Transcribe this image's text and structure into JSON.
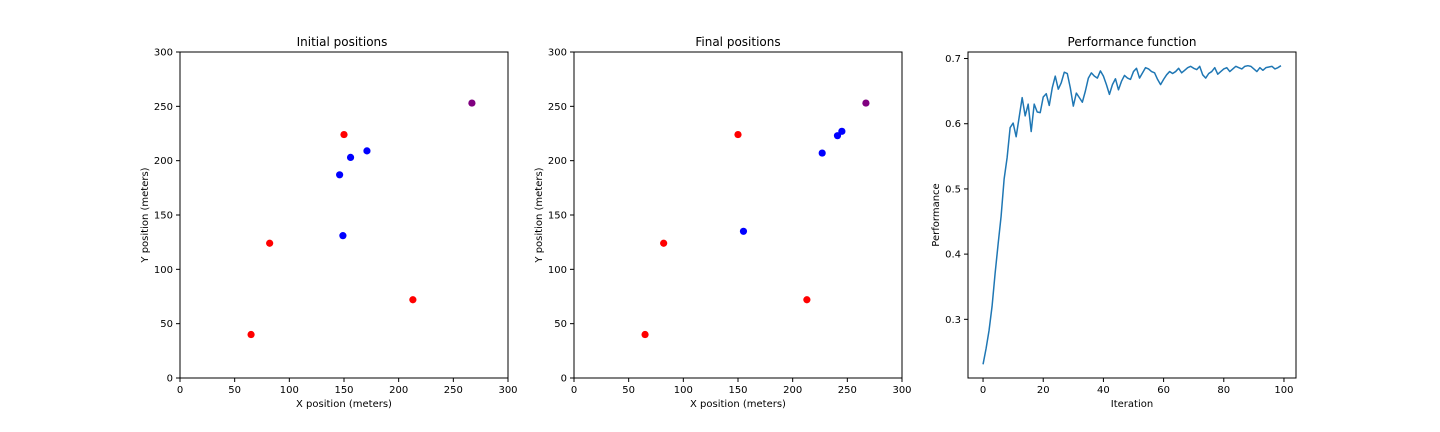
{
  "chart_data": [
    {
      "type": "scatter",
      "title": "Initial positions",
      "xlabel": "X position (meters)",
      "ylabel": "Y position (meters)",
      "xlim": [
        0,
        300
      ],
      "ylim": [
        0,
        300
      ],
      "xticks": [
        0,
        50,
        100,
        150,
        200,
        250,
        300
      ],
      "yticks": [
        0,
        50,
        100,
        150,
        200,
        250,
        300
      ],
      "grid": false,
      "points": [
        {
          "x": 65,
          "y": 40,
          "color": "#ff0000"
        },
        {
          "x": 82,
          "y": 124,
          "color": "#ff0000"
        },
        {
          "x": 150,
          "y": 224,
          "color": "#ff0000"
        },
        {
          "x": 213,
          "y": 72,
          "color": "#ff0000"
        },
        {
          "x": 146,
          "y": 187,
          "color": "#0000ff"
        },
        {
          "x": 156,
          "y": 203,
          "color": "#0000ff"
        },
        {
          "x": 171,
          "y": 209,
          "color": "#0000ff"
        },
        {
          "x": 149,
          "y": 131,
          "color": "#0000ff"
        },
        {
          "x": 267,
          "y": 253,
          "color": "#800080"
        }
      ]
    },
    {
      "type": "scatter",
      "title": "Final positions",
      "xlabel": "X position (meters)",
      "ylabel": "Y position (meters)",
      "xlim": [
        0,
        300
      ],
      "ylim": [
        0,
        300
      ],
      "xticks": [
        0,
        50,
        100,
        150,
        200,
        250,
        300
      ],
      "yticks": [
        0,
        50,
        100,
        150,
        200,
        250,
        300
      ],
      "grid": false,
      "points": [
        {
          "x": 65,
          "y": 40,
          "color": "#ff0000"
        },
        {
          "x": 82,
          "y": 124,
          "color": "#ff0000"
        },
        {
          "x": 150,
          "y": 224,
          "color": "#ff0000"
        },
        {
          "x": 213,
          "y": 72,
          "color": "#ff0000"
        },
        {
          "x": 155,
          "y": 135,
          "color": "#0000ff"
        },
        {
          "x": 227,
          "y": 207,
          "color": "#0000ff"
        },
        {
          "x": 241,
          "y": 223,
          "color": "#0000ff"
        },
        {
          "x": 245,
          "y": 227,
          "color": "#0000ff"
        },
        {
          "x": 267,
          "y": 253,
          "color": "#800080"
        }
      ]
    },
    {
      "type": "line",
      "title": "Performance function",
      "xlabel": "Iteration",
      "ylabel": "Performance",
      "xlim": [
        -5,
        104
      ],
      "ylim": [
        0.21,
        0.71
      ],
      "xticks": [
        0,
        20,
        40,
        60,
        80,
        100
      ],
      "yticks": [
        0.3,
        0.4,
        0.5,
        0.6,
        0.7
      ],
      "grid": false,
      "series": [
        {
          "color": "#1f77b4",
          "x": [
            0,
            1,
            2,
            3,
            4,
            5,
            6,
            7,
            8,
            9,
            10,
            11,
            12,
            13,
            14,
            15,
            16,
            17,
            18,
            19,
            20,
            21,
            22,
            23,
            24,
            25,
            26,
            27,
            28,
            29,
            30,
            31,
            32,
            33,
            34,
            35,
            36,
            37,
            38,
            39,
            40,
            41,
            42,
            43,
            44,
            45,
            46,
            47,
            48,
            49,
            50,
            51,
            52,
            53,
            54,
            55,
            56,
            57,
            58,
            59,
            60,
            61,
            62,
            63,
            64,
            65,
            66,
            67,
            68,
            69,
            70,
            71,
            72,
            73,
            74,
            75,
            76,
            77,
            78,
            79,
            80,
            81,
            82,
            83,
            84,
            85,
            86,
            87,
            88,
            89,
            90,
            91,
            92,
            93,
            94,
            95,
            96,
            97,
            98,
            99
          ],
          "y": [
            0.231,
            0.255,
            0.283,
            0.32,
            0.37,
            0.415,
            0.458,
            0.515,
            0.548,
            0.594,
            0.601,
            0.58,
            0.61,
            0.64,
            0.612,
            0.63,
            0.588,
            0.63,
            0.618,
            0.617,
            0.641,
            0.646,
            0.628,
            0.655,
            0.673,
            0.653,
            0.663,
            0.679,
            0.677,
            0.655,
            0.627,
            0.647,
            0.64,
            0.633,
            0.65,
            0.67,
            0.678,
            0.673,
            0.67,
            0.681,
            0.673,
            0.66,
            0.645,
            0.66,
            0.669,
            0.652,
            0.665,
            0.674,
            0.67,
            0.668,
            0.68,
            0.685,
            0.67,
            0.678,
            0.686,
            0.684,
            0.68,
            0.678,
            0.668,
            0.66,
            0.668,
            0.675,
            0.68,
            0.677,
            0.68,
            0.685,
            0.678,
            0.682,
            0.686,
            0.688,
            0.685,
            0.683,
            0.688,
            0.675,
            0.67,
            0.677,
            0.68,
            0.686,
            0.676,
            0.68,
            0.684,
            0.686,
            0.68,
            0.684,
            0.688,
            0.686,
            0.684,
            0.688,
            0.689,
            0.688,
            0.684,
            0.68,
            0.686,
            0.682,
            0.686,
            0.687,
            0.688,
            0.684,
            0.686,
            0.689
          ]
        }
      ]
    }
  ]
}
